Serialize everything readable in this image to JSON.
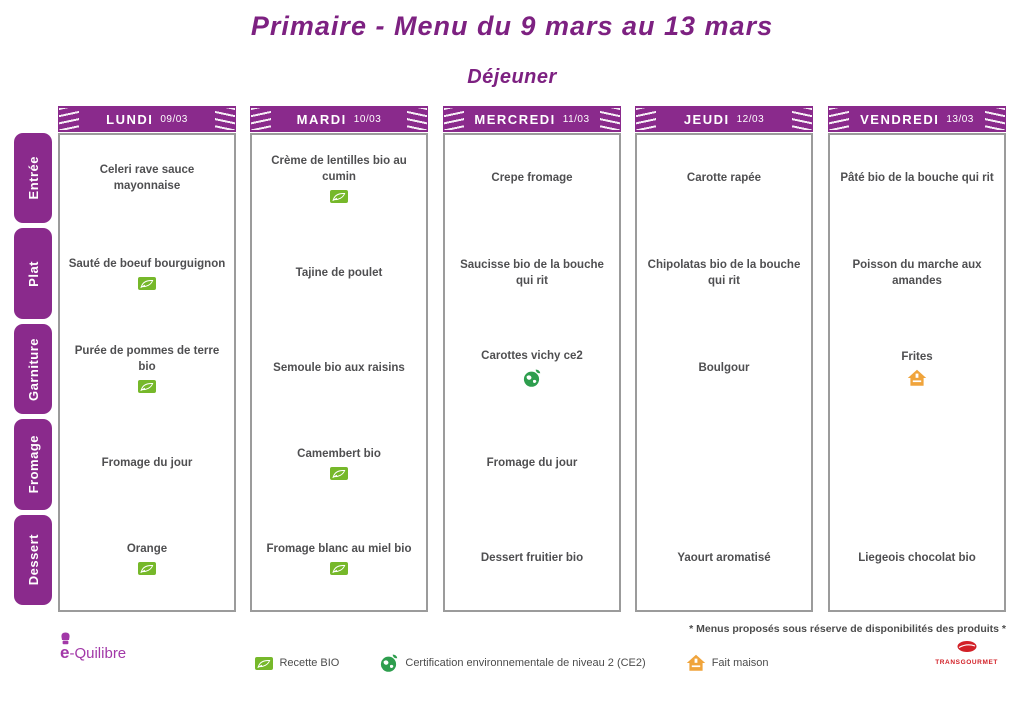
{
  "page": {
    "title": "Primaire - Menu du 9 mars au 13 mars",
    "subtitle": "Déjeuner",
    "footnote": "* Menus proposés sous réserve de disponibilités des produits *"
  },
  "colors": {
    "purple_banner": "#8a2a8c",
    "purple_title": "#7d2181",
    "bio_green": "#76b82a",
    "ce2_green": "#2e9e4e",
    "fait_maison_orange": "#f0a43b",
    "text_gray": "#4f4f51",
    "brand_red": "#d22027"
  },
  "categories": [
    "Entrée",
    "Plat",
    "Garniture",
    "Fromage",
    "Dessert"
  ],
  "days": [
    {
      "name": "LUNDI",
      "date": "09/03",
      "cells": [
        {
          "text": "Celeri rave sauce mayonnaise",
          "icon": null
        },
        {
          "text": "Sauté de boeuf bourguignon",
          "icon": "bio"
        },
        {
          "text": "Purée de pommes de terre bio",
          "icon": "bio"
        },
        {
          "text": "Fromage du jour",
          "icon": null
        },
        {
          "text": "Orange",
          "icon": "bio"
        }
      ]
    },
    {
      "name": "MARDI",
      "date": "10/03",
      "cells": [
        {
          "text": "Crème de lentilles bio au cumin",
          "icon": "bio"
        },
        {
          "text": "Tajine de poulet",
          "icon": null
        },
        {
          "text": "Semoule bio aux raisins",
          "icon": null
        },
        {
          "text": "Camembert bio",
          "icon": "bio"
        },
        {
          "text": "Fromage blanc au miel bio",
          "icon": "bio"
        }
      ]
    },
    {
      "name": "MERCREDI",
      "date": "11/03",
      "cells": [
        {
          "text": "Crepe fromage",
          "icon": null
        },
        {
          "text": "Saucisse bio de la bouche qui rit",
          "icon": null
        },
        {
          "text": "Carottes vichy ce2",
          "icon": "ce2"
        },
        {
          "text": "Fromage du jour",
          "icon": null
        },
        {
          "text": "Dessert fruitier bio",
          "icon": null
        }
      ]
    },
    {
      "name": "JEUDI",
      "date": "12/03",
      "cells": [
        {
          "text": "Carotte rapée",
          "icon": null
        },
        {
          "text": "Chipolatas bio de la bouche qui rit",
          "icon": null
        },
        {
          "text": "Boulgour",
          "icon": null
        },
        {
          "text": "",
          "icon": null
        },
        {
          "text": "Yaourt aromatisé",
          "icon": null
        }
      ]
    },
    {
      "name": "VENDREDI",
      "date": "13/03",
      "cells": [
        {
          "text": "Pâté bio de la bouche qui rit",
          "icon": null
        },
        {
          "text": "Poisson du marche aux amandes",
          "icon": null
        },
        {
          "text": "Frites",
          "icon": "fait-maison"
        },
        {
          "text": "",
          "icon": null
        },
        {
          "text": "Liegeois chocolat bio",
          "icon": null
        }
      ]
    }
  ],
  "legend": [
    {
      "icon": "bio",
      "label": "Recette BIO"
    },
    {
      "icon": "ce2",
      "label": "Certification environnementale de niveau 2 (CE2)"
    },
    {
      "icon": "fait-maison",
      "label": "Fait maison"
    }
  ],
  "logos": {
    "left_e": "e",
    "left_rest": "-Quilibre",
    "right": "TRANSGOURMET"
  }
}
